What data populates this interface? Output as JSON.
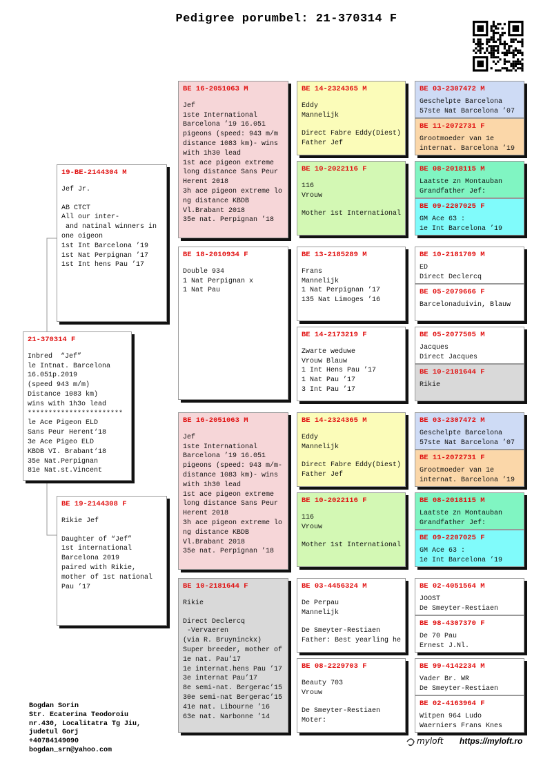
{
  "title": "Pedigree porumbel: 21-370314 F",
  "subject": {
    "id": "21-370314 F",
    "color": "#ffffff",
    "blocks": [
      [
        "Inbred  “Jef”",
        "le Intnat. Barcelona",
        "16.051p.2019",
        "(speed 943 m/m)",
        "Distance 1083 km)",
        "wins with 1h3o lead",
        "***********************",
        "le Ace Pigeon ELD",
        "Sans Peur Herent‘18",
        "3e Ace Pigeo ELD",
        "KBDB VI. Brabant‘18",
        "35e Nat.Perpignan",
        "81e Nat.st.Vincent"
      ]
    ]
  },
  "parents": [
    {
      "id": "19-BE-2144304 M",
      "color": "#ffffff",
      "blocks": [
        [
          "Jef Jr."
        ],
        [
          "AB CTCT",
          "All our inter-",
          " and natinal winners in",
          "one oigeon",
          "1st Int Barcelona ’19",
          "1st Nat Perpignan ’17",
          "1st Int hens Pau ’17"
        ]
      ]
    },
    {
      "id": "BE 19-2144308 F",
      "color": "#ffffff",
      "blocks": [
        [
          "Rikie Jef"
        ],
        [
          "Daughter of “Jef”",
          "1st international",
          "Barcelona 2019",
          "paired with Rikie,",
          "mother of 1st national",
          "Pau ’17"
        ]
      ]
    }
  ],
  "grandparents": [
    {
      "id": "BE 16-2051063 M",
      "color": "#f6d6d8",
      "blocks": [
        [
          "Jef",
          "1ste International",
          "Barcelona ’19 16.051",
          "pigeons (speed: 943 m/m",
          "distance 1083 km)- wins",
          "with 1h30 lead",
          "1st ace pigeon extreme",
          "long distance Sans Peur",
          "Herent 2018",
          "3h ace pigeon extreme lo",
          "ng distance KBDB",
          "Vl.Brabant 2018",
          "35e nat. Perpignan ’18"
        ]
      ]
    },
    {
      "id": "BE 18-2010934 F",
      "color": "#ffffff",
      "blocks": [
        [
          "Double 934",
          "1 Nat Perpignan x",
          "1 Nat Pau"
        ]
      ]
    },
    {
      "id": "BE 16-2051063 M",
      "color": "#f6d6d8",
      "blocks": [
        [
          "Jef",
          "1ste International",
          "Barcelona ’19 16.051",
          "pigeons (speed: 943 m/m-",
          "distance 1083 km)- wins",
          "with 1h30 lead",
          "1st ace pigeon extreme",
          "long distance Sans Peur",
          "Herent 2018",
          "3h ace pigeon extreme lo",
          "ng distance KBDB",
          "Vl.Brabant 2018",
          "35e nat. Perpignan ’18"
        ]
      ]
    },
    {
      "id": "BE 10-2181644 F",
      "color": "#d9d9d9",
      "blocks": [
        [
          "Rikie"
        ],
        [
          "Direct Declercq",
          " -Vervaeren",
          "(via R. Bruyninckx)",
          "Super breeder, mother of",
          "1e nat. Pau’17",
          "1e internat.hens Pau ’17",
          "3e internat Pau’17",
          "8e semi-nat. Bergerac’15",
          "30e semi-nat Bergerac’15",
          "41e nat. Libourne ’16",
          "63e nat. Narbonne ’14"
        ]
      ]
    }
  ],
  "gen3": [
    {
      "id": "BE 14-2324365 M",
      "color": "#fbfcb9",
      "blocks": [
        [
          "Eddy",
          "Mannelijk"
        ],
        [
          "Direct Fabre Eddy(Diest)",
          "Father Jef"
        ]
      ]
    },
    {
      "id": "BE 10-2022116 F",
      "color": "#d3f8b4",
      "blocks": [
        [
          "116",
          "Vrouw"
        ],
        [
          "Mother 1st International"
        ]
      ]
    },
    {
      "id": "BE 13-2185289 M",
      "color": "#ffffff",
      "blocks": [
        [
          "Frans",
          "Mannelijk",
          "1 Nat Perpignan ’17",
          "135 Nat Limoges ’16"
        ]
      ]
    },
    {
      "id": "BE 14-2173219 F",
      "color": "#ffffff",
      "blocks": [
        [
          "Zwarte weduwe",
          "Vrouw Blauw",
          "1 Int Hens Pau ’17",
          "1 Nat Pau ’17",
          "3 Int Pau ’17"
        ]
      ]
    },
    {
      "id": "BE 14-2324365 M",
      "color": "#fbfcb9",
      "blocks": [
        [
          "Eddy",
          "Mannelijk"
        ],
        [
          "Direct Fabre Eddy(Diest)",
          "Father Jef"
        ]
      ]
    },
    {
      "id": "BE 10-2022116 F",
      "color": "#d3f8b4",
      "blocks": [
        [
          "116",
          "Vrouw"
        ],
        [
          "Mother 1st International"
        ]
      ]
    },
    {
      "id": "BE 03-4456324 M",
      "color": "#ffffff",
      "blocks": [
        [
          "De Perpau",
          "Mannelijk"
        ],
        [
          "De Smeyter-Restiaen",
          "Father: Best yearling he"
        ]
      ]
    },
    {
      "id": "BE 08-2229703 F",
      "color": "#ffffff",
      "blocks": [
        [
          "Beauty 703",
          "Vrouw"
        ],
        [
          "De Smeyter-Restiaen",
          "Moter:"
        ]
      ]
    }
  ],
  "gen4": [
    {
      "id": "BE 03-2307472 M",
      "color": "#cedbf5",
      "blocks": [
        [
          "Geschelpte Barcelona",
          "57ste Nat Barcelona ’07"
        ]
      ]
    },
    {
      "id": "BE 11-2072731 F",
      "color": "#fbd7a9",
      "blocks": [
        [
          "Grootmoeder van 1e",
          "internat. Barcelona ’19"
        ]
      ]
    },
    {
      "id": "BE 08-2018115 M",
      "color": "#80f5c2",
      "blocks": [
        [
          "Laatste zn Montauban",
          "Grandfather Jef:"
        ]
      ]
    },
    {
      "id": "BE 09-2207025 F",
      "color": "#80fbfb",
      "blocks": [
        [
          "GM Ace 63 :",
          "1e Int Barcelona ’19"
        ]
      ]
    },
    {
      "id": "BE 10-2181709 M",
      "color": "#ffffff",
      "blocks": [
        [
          "ED",
          "Direct Declercq"
        ]
      ]
    },
    {
      "id": "BE 05-2079666 F",
      "color": "#ffffff",
      "blocks": [
        [
          "Barcelonaduivin, Blauw"
        ]
      ]
    },
    {
      "id": "BE 05-2077505 M",
      "color": "#ffffff",
      "blocks": [
        [
          "Jacques",
          "Direct Jacques"
        ]
      ]
    },
    {
      "id": "BE 10-2181644 F",
      "color": "#d9d9d9",
      "blocks": [
        [
          "Rikie"
        ]
      ]
    },
    {
      "id": "BE 03-2307472 M",
      "color": "#cedbf5",
      "blocks": [
        [
          "Geschelpte Barcelona",
          "57ste Nat Barcelona ’07"
        ]
      ]
    },
    {
      "id": "BE 11-2072731 F",
      "color": "#fbd7a9",
      "blocks": [
        [
          "Grootmoeder van 1e",
          "internat. Barcelona ’19"
        ]
      ]
    },
    {
      "id": "BE 08-2018115 M",
      "color": "#80f5c2",
      "blocks": [
        [
          "Laatste zn Montauban",
          "Grandfather Jef:"
        ]
      ]
    },
    {
      "id": "BE 09-2207025 F",
      "color": "#80fbfb",
      "blocks": [
        [
          "GM Ace 63 :",
          "1e Int Barcelona ’19"
        ]
      ]
    },
    {
      "id": "BE 02-4051564 M",
      "color": "#ffffff",
      "blocks": [
        [
          "JOOST",
          "De Smeyter-Restiaen"
        ]
      ]
    },
    {
      "id": "BE 98-4307370 F",
      "color": "#ffffff",
      "blocks": [
        [
          "De 70 Pau",
          "Ernest J.Nl."
        ]
      ]
    },
    {
      "id": "BE 99-4142234 M",
      "color": "#ffffff",
      "blocks": [
        [
          "Vader Br. WR",
          "De Smeyter-Restiaen"
        ]
      ]
    },
    {
      "id": "BE 02-4163964 F",
      "color": "#ffffff",
      "blocks": [
        [
          "Witpen 964 Ludo",
          "Waerniers Frans Knes"
        ]
      ]
    }
  ],
  "owner": {
    "lines": [
      "Bogdan Sorin",
      "Str. Ecaterina Teodoroiu",
      "nr.430, Localitatra Tg Jiu,",
      "judetul Gorj",
      "+40784149090",
      "bogdan_srn@yahoo.com"
    ]
  },
  "logo": "myloft",
  "website": "https://myloft.ro"
}
